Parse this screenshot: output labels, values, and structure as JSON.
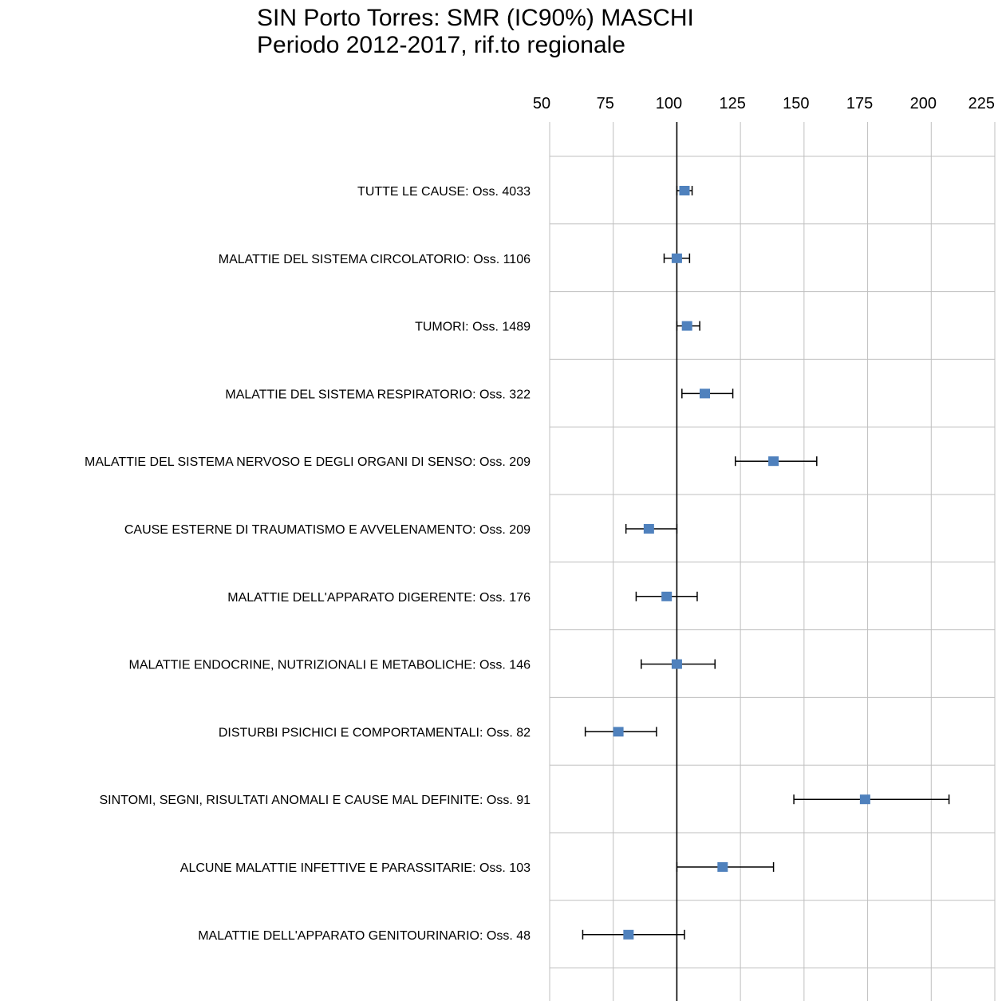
{
  "chart_data": {
    "type": "forest",
    "title": "SIN Porto Torres: SMR (IC90%) MASCHI",
    "subtitle": "Periodo 2012-2017, rif.to regionale",
    "xlim": [
      50,
      225
    ],
    "xticks": [
      50,
      75,
      100,
      125,
      150,
      175,
      200,
      225
    ],
    "reference_line": 100,
    "grid": true,
    "categories": [
      "TUTTE LE CAUSE: Oss. 4033",
      "MALATTIE DEL SISTEMA CIRCOLATORIO: Oss. 1106",
      "TUMORI: Oss. 1489",
      "MALATTIE DEL SISTEMA RESPIRATORIO: Oss. 322",
      "MALATTIE DEL SISTEMA NERVOSO E DEGLI ORGANI DI SENSO: Oss. 209",
      "CAUSE ESTERNE DI TRAUMATISMO E AVVELENAMENTO: Oss. 209",
      "MALATTIE DELL'APPARATO DIGERENTE: Oss. 176",
      "MALATTIE ENDOCRINE, NUTRIZIONALI E METABOLICHE: Oss. 146",
      "DISTURBI PSICHICI E COMPORTAMENTALI: Oss. 82",
      "SINTOMI, SEGNI, RISULTATI ANOMALI E CAUSE MAL DEFINITE: Oss. 91",
      "ALCUNE MALATTIE INFETTIVE E PARASSITARIE: Oss. 103",
      "MALATTIE DELL'APPARATO GENITOURINARIO: Oss. 48"
    ],
    "smr": [
      103,
      100,
      104,
      111,
      138,
      89,
      96,
      100,
      77,
      174,
      118,
      81
    ],
    "lower": [
      100,
      95,
      100,
      102,
      123,
      80,
      84,
      86,
      64,
      146,
      100,
      63
    ],
    "upper": [
      106,
      105,
      109,
      122,
      155,
      100,
      108,
      115,
      92,
      207,
      138,
      103
    ],
    "colors": {
      "marker": "#4f81bd",
      "grid": "#bfbfbf",
      "reference": "#000000",
      "whisker": "#000000"
    }
  }
}
